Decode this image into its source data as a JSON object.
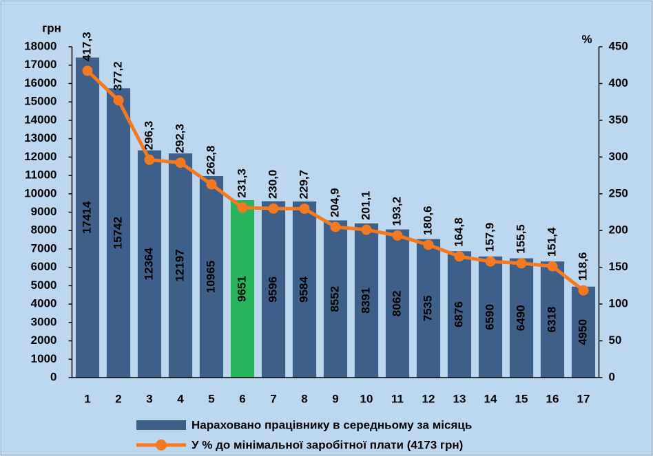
{
  "chart_data": {
    "type": "bar-line",
    "y_label": "грн",
    "y2_label": "%",
    "categories": [
      "1",
      "2",
      "3",
      "4",
      "5",
      "6",
      "7",
      "8",
      "9",
      "10",
      "11",
      "12",
      "13",
      "14",
      "15",
      "16",
      "17"
    ],
    "series": [
      {
        "name": "Нараховано працівнику в середньому за місяць",
        "type": "bar",
        "color": "#3d5f88",
        "colors": [
          "#3d5f88",
          "#3d5f88",
          "#3d5f88",
          "#3d5f88",
          "#3d5f88",
          "#27b45a",
          "#3d5f88",
          "#3d5f88",
          "#3d5f88",
          "#3d5f88",
          "#3d5f88",
          "#3d5f88",
          "#3d5f88",
          "#3d5f88",
          "#3d5f88",
          "#3d5f88",
          "#3d5f88"
        ],
        "values": [
          17414,
          15742,
          12364,
          12197,
          10965,
          9651,
          9596,
          9584,
          8552,
          8391,
          8062,
          7535,
          6876,
          6590,
          6490,
          6318,
          4950
        ]
      },
      {
        "name": "У % до мінімальної заробітної плати (4173 грн)",
        "type": "line",
        "color": "#f47920",
        "axis": "y2",
        "values": [
          417.3,
          377.2,
          296.3,
          292.3,
          262.8,
          231.3,
          230.0,
          229.7,
          204.9,
          201.1,
          193.2,
          180.6,
          164.8,
          157.9,
          155.5,
          151.4,
          118.6
        ],
        "value_labels": [
          "417,3",
          "377,2",
          "296,3",
          "292,3",
          "262,8",
          "231,3",
          "230,0",
          "229,7",
          "204,9",
          "201,1",
          "193,2",
          "180,6",
          "164,8",
          "157,9",
          "155,5",
          "151,4",
          "118,6"
        ]
      }
    ],
    "ylim": [
      0,
      18000
    ],
    "yticks": [
      0,
      1000,
      2000,
      3000,
      4000,
      5000,
      6000,
      7000,
      8000,
      9000,
      10000,
      11000,
      12000,
      13000,
      14000,
      15000,
      16000,
      17000,
      18000
    ],
    "y2lim": [
      0,
      450
    ],
    "y2ticks": [
      0,
      50,
      100,
      150,
      200,
      250,
      300,
      350,
      400,
      450
    ]
  }
}
